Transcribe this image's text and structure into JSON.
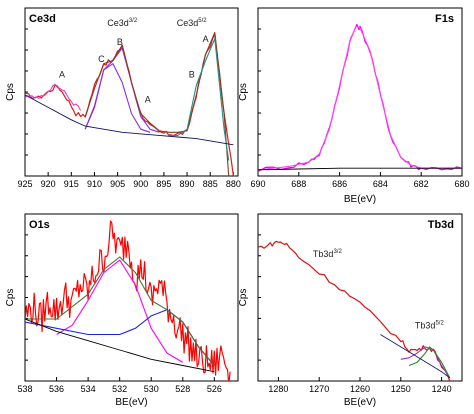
{
  "colors": {
    "frame": "#000000",
    "ce_raw": "#d81e1e",
    "ce_envelope": "#8b3a1a",
    "ce_3_2_peak": "#8a2be2",
    "ce_5_2_peak": "#1f8f8f",
    "ce_baseline": "#101060",
    "ce_raw_left": "#e040c0",
    "f_raw": "#e000e0",
    "f_envelope": "#ff40ff",
    "o_raw": "#ff0000",
    "o_fit1": "#ff00ff",
    "o_fit2": "#1a2ad0",
    "o_envelope": "#556b2f",
    "o_baseline": "#000000",
    "tb_raw": "#e01010",
    "tb_fit1": "#9932cc",
    "tb_fit2": "#228b22",
    "tb_baseline": "#1a1a7a"
  },
  "chart_data": [
    {
      "id": "ce3d",
      "type": "line",
      "panel_label": "Ce3d",
      "xlabel": "",
      "ylabel": "Cps",
      "xlim": [
        925,
        879
      ],
      "x_reversed": true,
      "ticks": [
        925,
        920,
        915,
        910,
        905,
        900,
        895,
        890,
        885,
        880
      ],
      "ylim": [
        0,
        100
      ],
      "annotations": [
        {
          "text": "A",
          "x": 917.0,
          "y": 63,
          "sup": ""
        },
        {
          "text": "C",
          "x": 908.5,
          "y": 73,
          "sup": ""
        },
        {
          "text": "B",
          "x": 904.5,
          "y": 84,
          "sup": ""
        },
        {
          "text": "Ce3d",
          "x": 904.0,
          "y": 96,
          "sup": "3/2"
        },
        {
          "text": "A",
          "x": 898.5,
          "y": 47,
          "sup": ""
        },
        {
          "text": "Ce3d",
          "x": 889.0,
          "y": 96,
          "sup": "5/2"
        },
        {
          "text": "B",
          "x": 889.0,
          "y": 63,
          "sup": ""
        },
        {
          "text": "A",
          "x": 886.0,
          "y": 86,
          "sup": ""
        }
      ],
      "series": [
        {
          "role": "raw",
          "color_key": "ce_raw",
          "x": [
            925,
            922,
            920,
            918,
            916,
            914,
            912,
            910,
            908,
            906,
            904,
            902,
            900,
            898,
            896,
            894,
            892,
            890,
            888,
            886,
            884,
            882,
            880
          ],
          "y": [
            52,
            50,
            54,
            58,
            50,
            40,
            38,
            58,
            72,
            74,
            84,
            60,
            40,
            32,
            28,
            27,
            27,
            28,
            52,
            78,
            90,
            40,
            0
          ]
        },
        {
          "role": "raw_left",
          "color_key": "ce_raw_left",
          "x": [
            925,
            923,
            921,
            919,
            917,
            915,
            913
          ],
          "y": [
            51,
            50,
            52,
            58,
            56,
            48,
            42
          ]
        },
        {
          "role": "fit",
          "color_key": "ce_3_2_peak",
          "x": [
            912,
            910,
            908,
            906,
            904,
            902,
            900,
            898,
            896
          ],
          "y": [
            30,
            45,
            68,
            74,
            82,
            60,
            38,
            30,
            28
          ]
        },
        {
          "role": "fit",
          "color_key": "ce_3_2_peak",
          "x": [
            912,
            910,
            908,
            906,
            904,
            902,
            900,
            898
          ],
          "y": [
            30,
            44,
            68,
            72,
            60,
            40,
            30,
            28
          ]
        },
        {
          "role": "envelope",
          "color_key": "ce_envelope",
          "x": [
            912,
            910,
            908,
            906,
            904,
            902,
            900,
            898,
            896,
            894,
            892,
            890,
            888,
            886,
            884,
            882,
            881
          ],
          "y": [
            38,
            56,
            72,
            74,
            84,
            60,
            40,
            34,
            29,
            28,
            28,
            29,
            52,
            78,
            92,
            40,
            0
          ]
        },
        {
          "role": "fit",
          "color_key": "ce_5_2_peak",
          "x": [
            894,
            892,
            890,
            888,
            886,
            884,
            882,
            881
          ],
          "y": [
            26,
            26,
            30,
            58,
            74,
            88,
            30,
            10
          ]
        },
        {
          "role": "baseline",
          "color_key": "ce_baseline",
          "x": [
            925,
            920,
            915,
            912,
            908,
            904,
            900,
            896,
            892,
            888,
            884,
            880
          ],
          "y": [
            52,
            44,
            36,
            32,
            30,
            28,
            27,
            26,
            25,
            24,
            22,
            20
          ]
        }
      ]
    },
    {
      "id": "f1s",
      "type": "line",
      "panel_label": "F1s",
      "xlabel": "BE(eV)",
      "ylabel": "Cps",
      "xlim": [
        690,
        680
      ],
      "x_reversed": true,
      "ticks": [
        690,
        688,
        686,
        684,
        682,
        680
      ],
      "ylim": [
        0,
        100
      ],
      "annotations": [],
      "series": [
        {
          "role": "raw",
          "color_key": "f_raw",
          "x": [
            690,
            688.5,
            687.5,
            687,
            686.5,
            686,
            685.5,
            685.2,
            685,
            684.5,
            684,
            683.5,
            683,
            682.5,
            682,
            681,
            680
          ],
          "y": [
            4,
            6,
            9,
            14,
            30,
            58,
            86,
            96,
            95,
            80,
            52,
            26,
            12,
            7,
            5,
            5,
            5
          ]
        },
        {
          "role": "envelope",
          "color_key": "f_envelope",
          "x": [
            690,
            688.5,
            687.5,
            687,
            686.5,
            686,
            685.5,
            685.2,
            685,
            684.5,
            684,
            683.5,
            683,
            682.5,
            682,
            681,
            680
          ],
          "y": [
            4,
            6,
            9,
            14,
            30,
            58,
            86,
            96,
            95,
            80,
            52,
            26,
            12,
            7,
            5,
            5,
            5
          ]
        },
        {
          "role": "baseline",
          "color_key": "o_baseline",
          "x": [
            690,
            688,
            686,
            684,
            682,
            680
          ],
          "y": [
            4,
            4.5,
            5,
            5,
            5,
            5
          ]
        }
      ]
    },
    {
      "id": "o1s",
      "type": "line",
      "panel_label": "O1s",
      "xlabel": "BE(eV)",
      "ylabel": "Cps",
      "xlim": [
        538,
        524.5
      ],
      "x_reversed": true,
      "ticks": [
        538,
        536,
        534,
        532,
        530,
        528,
        526
      ],
      "ylim": [
        0,
        100
      ],
      "annotations": [],
      "series": [
        {
          "role": "raw",
          "color_key": "o_raw",
          "x": [
            538,
            537.5,
            537,
            536.5,
            536,
            535.5,
            535,
            534.5,
            534,
            533.5,
            533,
            532.5,
            532,
            531.5,
            531,
            530.5,
            530,
            529.5,
            529,
            528.5,
            528,
            527.5,
            527,
            526.5,
            526,
            525.5,
            525
          ],
          "y": [
            42,
            48,
            40,
            52,
            45,
            55,
            50,
            62,
            58,
            72,
            80,
            96,
            84,
            90,
            68,
            72,
            52,
            64,
            50,
            38,
            30,
            22,
            14,
            12,
            10,
            18,
            6
          ]
        },
        {
          "role": "fit",
          "color_key": "o_fit1",
          "x": [
            536,
            535,
            534,
            533,
            532,
            531,
            530,
            529,
            528
          ],
          "y": [
            30,
            36,
            52,
            70,
            78,
            62,
            34,
            18,
            12
          ]
        },
        {
          "role": "fit",
          "color_key": "o_fit2",
          "x": [
            538,
            536,
            534,
            532,
            531,
            530,
            529,
            528,
            527,
            526
          ],
          "y": [
            38,
            34,
            30,
            30,
            34,
            42,
            46,
            38,
            22,
            10
          ]
        },
        {
          "role": "envelope",
          "color_key": "o_envelope",
          "x": [
            538,
            536,
            534,
            533,
            532,
            531,
            530,
            529,
            528,
            527,
            526
          ],
          "y": [
            40,
            40,
            56,
            72,
            80,
            70,
            52,
            46,
            38,
            22,
            10
          ]
        },
        {
          "role": "baseline",
          "color_key": "o_baseline",
          "x": [
            538,
            536,
            534,
            532,
            530,
            528,
            526
          ],
          "y": [
            40,
            32,
            26,
            20,
            14,
            10,
            6
          ]
        }
      ]
    },
    {
      "id": "tb3d",
      "type": "line",
      "panel_label": "Tb3d",
      "xlabel": "BE(eV)",
      "ylabel": "Cps",
      "xlim": [
        1285,
        1235
      ],
      "x_reversed": true,
      "ticks": [
        1280,
        1270,
        1260,
        1250,
        1240
      ],
      "ylim": [
        0,
        100
      ],
      "annotations": [
        {
          "text": "Tb3d",
          "x": 1268.0,
          "y": 80,
          "sup": "3/2"
        },
        {
          "text": "Tb3d",
          "x": 1243.0,
          "y": 34,
          "sup": "5/2"
        }
      ],
      "series": [
        {
          "role": "raw",
          "color_key": "tb_raw",
          "x": [
            1285,
            1282,
            1280,
            1278,
            1275,
            1270,
            1265,
            1260,
            1255,
            1250,
            1248,
            1246,
            1244,
            1242,
            1240,
            1238
          ],
          "y": [
            86,
            88,
            90,
            88,
            80,
            70,
            60,
            50,
            38,
            26,
            20,
            20,
            22,
            20,
            10,
            0
          ]
        },
        {
          "role": "fit",
          "color_key": "tb_fit1",
          "x": [
            1250,
            1248,
            1246,
            1244,
            1242,
            1240,
            1238
          ],
          "y": [
            14,
            15,
            18,
            22,
            20,
            10,
            2
          ]
        },
        {
          "role": "fit",
          "color_key": "tb_fit2",
          "x": [
            1248,
            1246,
            1244,
            1243,
            1242,
            1240,
            1238
          ],
          "y": [
            10,
            12,
            18,
            22,
            20,
            12,
            2
          ]
        },
        {
          "role": "baseline",
          "color_key": "tb_baseline",
          "x": [
            1255,
            1250,
            1245,
            1240,
            1238
          ],
          "y": [
            30,
            22,
            14,
            6,
            2
          ]
        }
      ]
    }
  ]
}
